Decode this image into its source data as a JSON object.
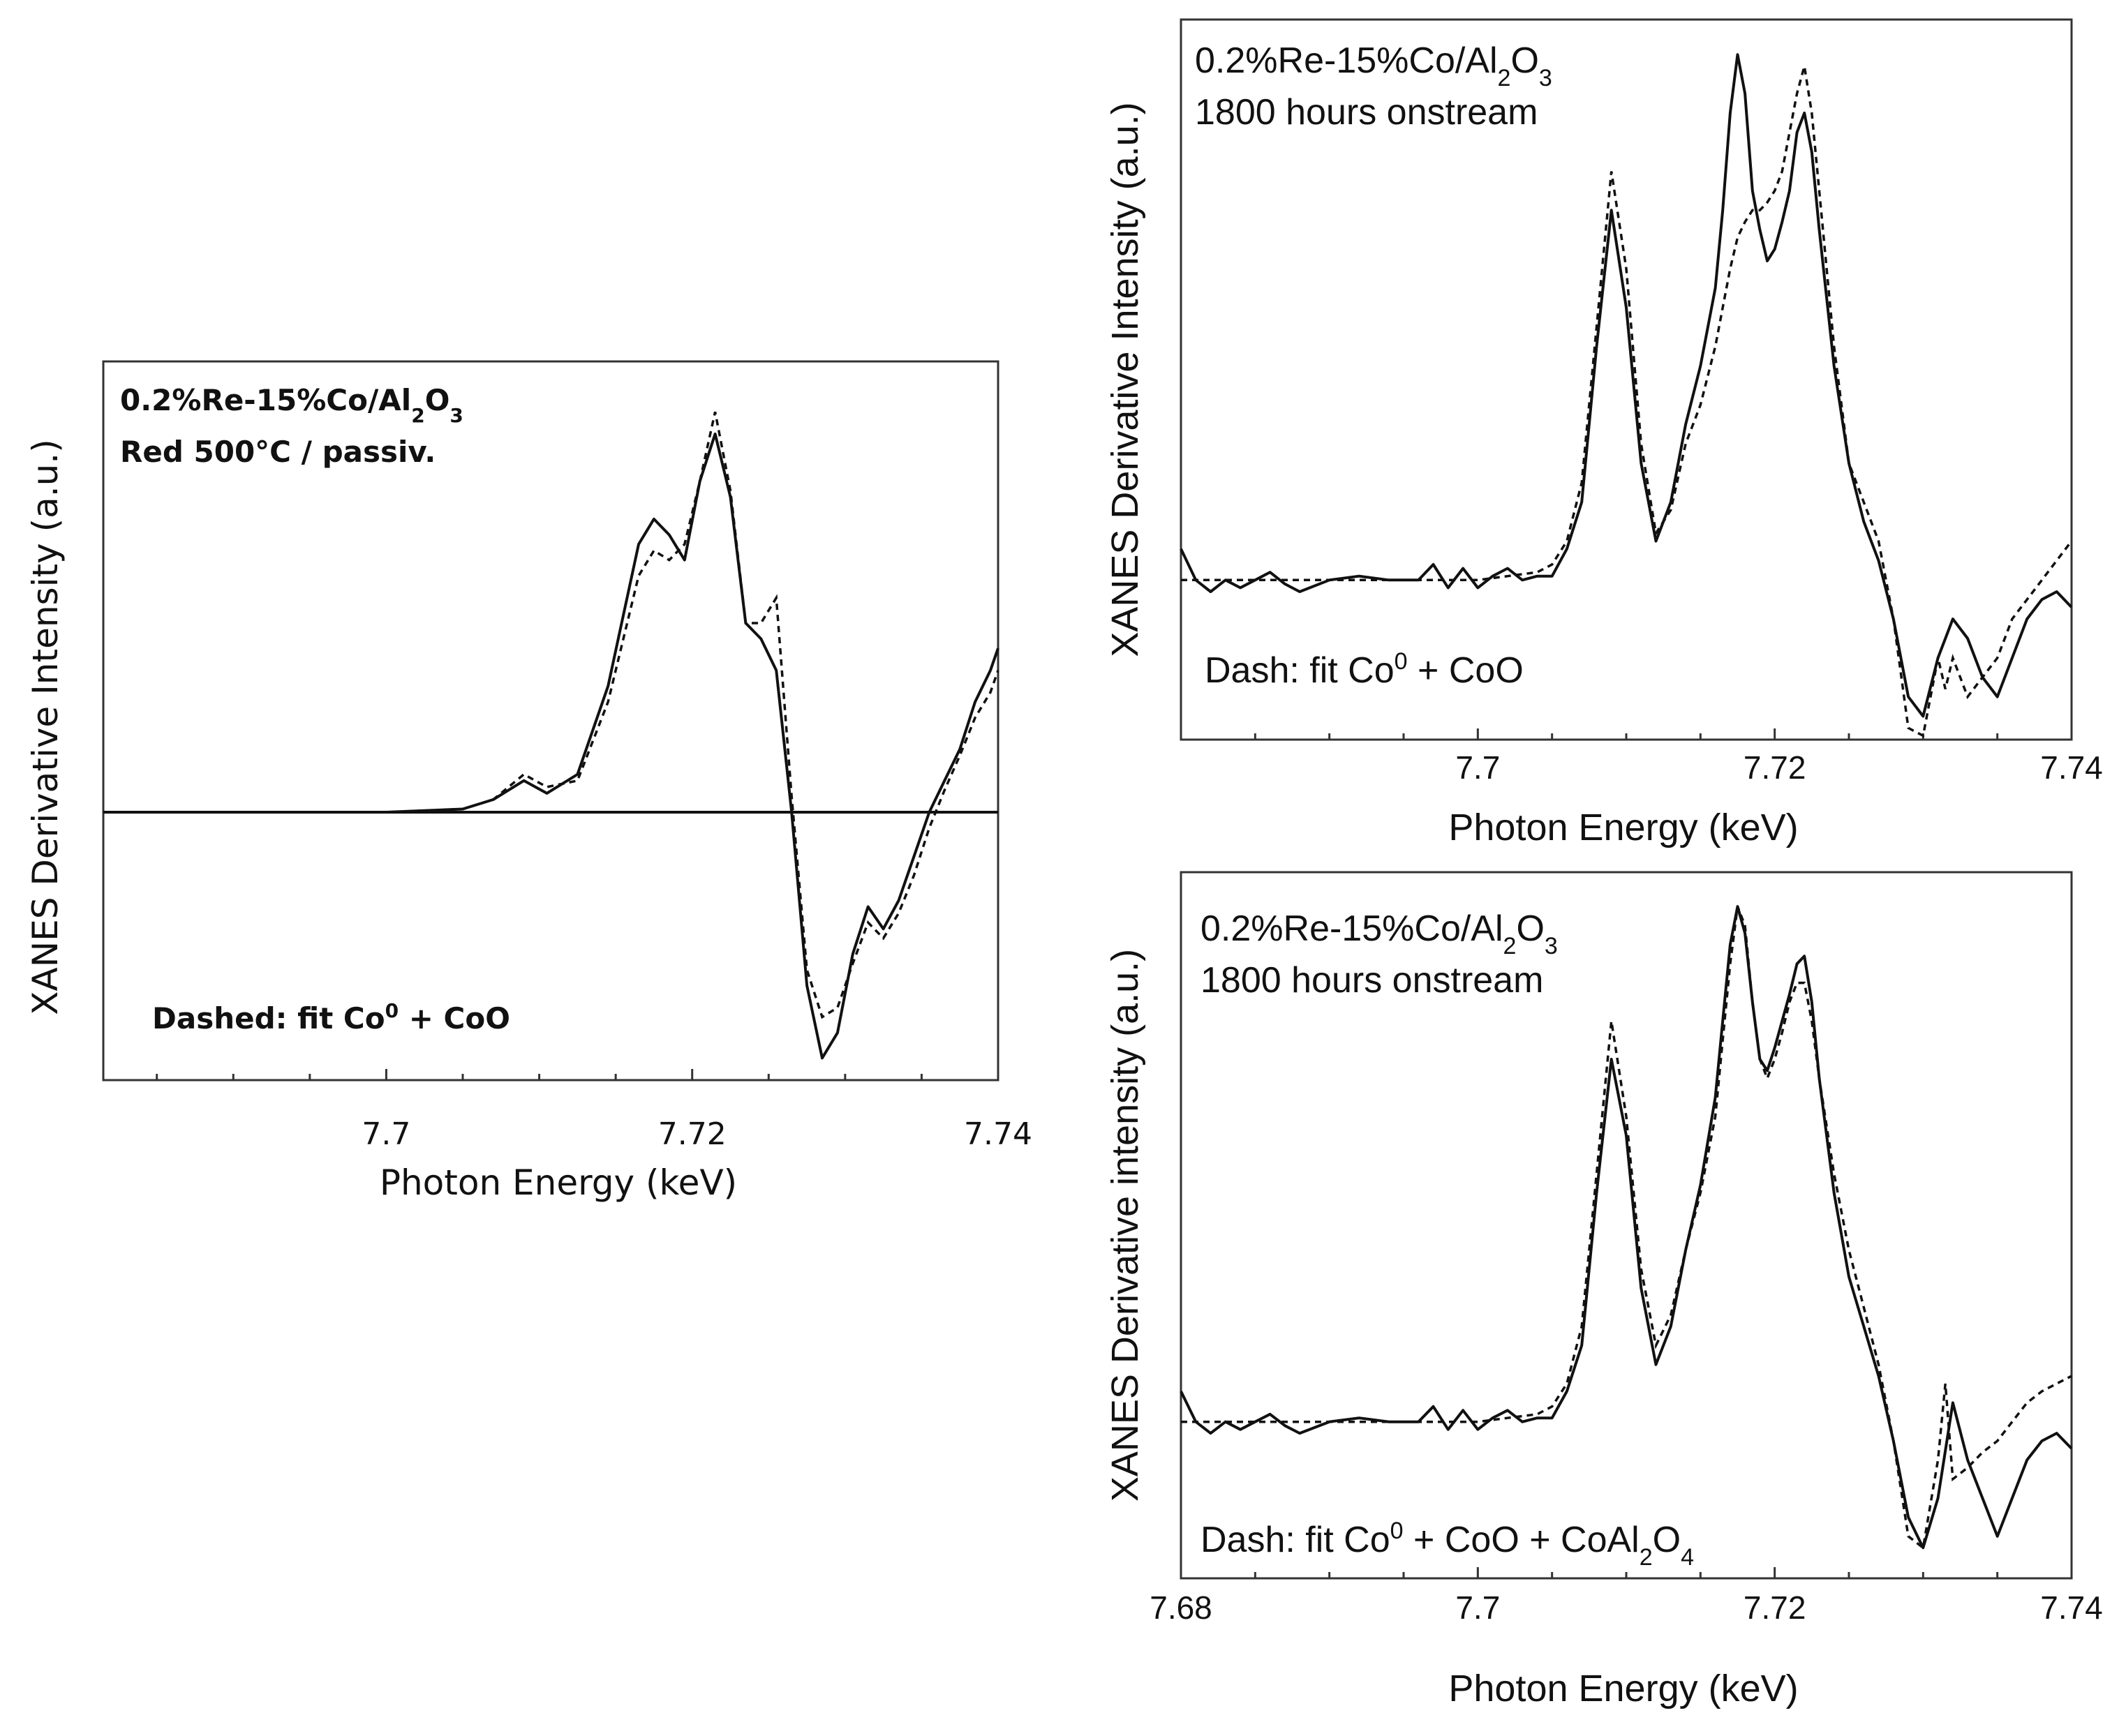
{
  "chart_data": [
    {
      "type": "line",
      "panel": "left",
      "annotation_line1": {
        "prefix": "0.2%Re-15%Co/Al",
        "sub1": "2",
        "mid": "O",
        "sub2": "3"
      },
      "annotation_line2": "Red 500°C / passiv.",
      "legend_note": {
        "prefix": "Dashed:  fit Co",
        "sup": "0",
        "suffix": " + CoO"
      },
      "xlabel": "Photon Energy (keV)",
      "ylabel": "XANES Derivative Intensity (a.u.)",
      "x_ticks": [
        7.7,
        7.72,
        7.74
      ],
      "x_tick_labels": [
        "7.7",
        "7.72",
        "7.74"
      ],
      "xlim": [
        7.6815,
        7.74
      ],
      "ylim": [
        -0.85,
        1.43
      ],
      "zero_line": true,
      "series": [
        {
          "style": "solid",
          "x": [
            7.6815,
            7.7,
            7.705,
            7.707,
            7.709,
            7.7105,
            7.7125,
            7.7145,
            7.7165,
            7.7175,
            7.7185,
            7.7195,
            7.7205,
            7.7215,
            7.7225,
            7.7235,
            7.7245,
            7.7255,
            7.7265,
            7.7275,
            7.7285,
            7.7295,
            7.7305,
            7.7315,
            7.7325,
            7.7335,
            7.7345,
            7.7355,
            7.7365,
            7.7375,
            7.7385,
            7.7395,
            7.74
          ],
          "y": [
            0,
            0,
            0.01,
            0.04,
            0.1,
            0.06,
            0.12,
            0.4,
            0.85,
            0.93,
            0.88,
            0.8,
            1.05,
            1.2,
            1.0,
            0.6,
            0.55,
            0.45,
            0.0,
            -0.55,
            -0.78,
            -0.7,
            -0.45,
            -0.3,
            -0.37,
            -0.28,
            -0.14,
            0.0,
            0.1,
            0.2,
            0.35,
            0.45,
            0.52
          ]
        },
        {
          "style": "dashed",
          "x": [
            7.6815,
            7.7,
            7.705,
            7.707,
            7.709,
            7.7105,
            7.7125,
            7.7145,
            7.7165,
            7.7175,
            7.7185,
            7.7195,
            7.7205,
            7.7215,
            7.7225,
            7.7235,
            7.7245,
            7.7255,
            7.7265,
            7.7275,
            7.7285,
            7.7295,
            7.7305,
            7.7315,
            7.7325,
            7.7335,
            7.7345,
            7.7355,
            7.7365,
            7.7375,
            7.7385,
            7.7395,
            7.74
          ],
          "y": [
            0,
            0,
            0.01,
            0.04,
            0.12,
            0.08,
            0.1,
            0.35,
            0.75,
            0.83,
            0.8,
            0.85,
            1.05,
            1.27,
            1.02,
            0.6,
            0.6,
            0.68,
            0.05,
            -0.5,
            -0.65,
            -0.62,
            -0.48,
            -0.35,
            -0.4,
            -0.32,
            -0.2,
            -0.05,
            0.07,
            0.18,
            0.3,
            0.38,
            0.45
          ]
        }
      ]
    },
    {
      "type": "line",
      "panel": "top-right",
      "annotation_line1": {
        "prefix": "0.2%Re-15%Co/Al",
        "sub1": "2",
        "mid": "O",
        "sub2": "3"
      },
      "annotation_line2": "1800 hours onstream",
      "legend_note": {
        "prefix": "Dash: fit  Co",
        "sup": "0",
        "suffix": " + CoO"
      },
      "xlabel": "Photon Energy (keV)",
      "ylabel": "XANES Derivative Intensity (a.u.)",
      "x_ticks": [
        7.7,
        7.72,
        7.74
      ],
      "x_tick_labels": [
        "7.7",
        "7.72",
        "7.74"
      ],
      "xlim": [
        7.68,
        7.74
      ],
      "ylim": [
        -0.41,
        1.44
      ],
      "series": [
        {
          "style": "solid",
          "x": [
            7.68,
            7.681,
            7.682,
            7.683,
            7.684,
            7.685,
            7.686,
            7.687,
            7.688,
            7.69,
            7.692,
            7.694,
            7.696,
            7.697,
            7.698,
            7.699,
            7.7,
            7.701,
            7.702,
            7.703,
            7.704,
            7.705,
            7.706,
            7.707,
            7.708,
            7.709,
            7.71,
            7.711,
            7.712,
            7.713,
            7.714,
            7.715,
            7.716,
            7.7165,
            7.717,
            7.7175,
            7.718,
            7.7185,
            7.719,
            7.7195,
            7.72,
            7.7205,
            7.721,
            7.7215,
            7.722,
            7.7225,
            7.723,
            7.724,
            7.725,
            7.726,
            7.727,
            7.728,
            7.729,
            7.73,
            7.731,
            7.732,
            7.733,
            7.734,
            7.735,
            7.736,
            7.737,
            7.738,
            7.739,
            7.74
          ],
          "y": [
            0.08,
            0.0,
            -0.03,
            0.0,
            -0.02,
            0.0,
            0.02,
            -0.01,
            -0.03,
            0.0,
            0.01,
            0.0,
            0.0,
            0.04,
            -0.02,
            0.03,
            -0.02,
            0.01,
            0.03,
            0.0,
            0.01,
            0.01,
            0.08,
            0.2,
            0.6,
            0.95,
            0.7,
            0.3,
            0.1,
            0.2,
            0.4,
            0.55,
            0.75,
            0.95,
            1.2,
            1.35,
            1.25,
            1.0,
            0.9,
            0.82,
            0.85,
            0.92,
            1.0,
            1.15,
            1.2,
            1.1,
            0.9,
            0.55,
            0.3,
            0.15,
            0.05,
            -0.1,
            -0.3,
            -0.35,
            -0.2,
            -0.1,
            -0.15,
            -0.25,
            -0.3,
            -0.2,
            -0.1,
            -0.05,
            -0.03,
            -0.07
          ]
        },
        {
          "style": "dashed",
          "x": [
            7.68,
            7.69,
            7.7,
            7.702,
            7.704,
            7.705,
            7.706,
            7.707,
            7.708,
            7.709,
            7.71,
            7.711,
            7.712,
            7.713,
            7.714,
            7.715,
            7.716,
            7.7165,
            7.717,
            7.7175,
            7.718,
            7.7185,
            7.719,
            7.7195,
            7.72,
            7.7205,
            7.721,
            7.7215,
            7.722,
            7.7225,
            7.723,
            7.724,
            7.725,
            7.726,
            7.727,
            7.728,
            7.729,
            7.73,
            7.731,
            7.7315,
            7.732,
            7.733,
            7.734,
            7.735,
            7.736,
            7.737,
            7.738,
            7.739,
            7.74
          ],
          "y": [
            0,
            0,
            0.0,
            0.01,
            0.02,
            0.04,
            0.1,
            0.25,
            0.65,
            1.05,
            0.8,
            0.35,
            0.12,
            0.18,
            0.35,
            0.45,
            0.6,
            0.7,
            0.8,
            0.88,
            0.92,
            0.95,
            0.95,
            0.97,
            1.0,
            1.05,
            1.15,
            1.25,
            1.32,
            1.2,
            1.0,
            0.6,
            0.3,
            0.2,
            0.1,
            -0.1,
            -0.38,
            -0.4,
            -0.2,
            -0.28,
            -0.2,
            -0.3,
            -0.25,
            -0.2,
            -0.1,
            -0.05,
            0.0,
            0.05,
            0.1
          ]
        }
      ]
    },
    {
      "type": "line",
      "panel": "bottom-right",
      "annotation_line1": {
        "prefix": "0.2%Re-15%Co/Al",
        "sub1": "2",
        "mid": "O",
        "sub2": "3"
      },
      "annotation_line2": "1800 hours onstream",
      "legend_note": {
        "prefix": "Dash:  fit Co",
        "sup": "0",
        "suffix": " + CoO + CoAl",
        "sub1": "2",
        "mid": "O",
        "sub2": "4"
      },
      "xlabel": "Photon Energy (keV)",
      "ylabel": "XANES Derivative intensity (a.u.)",
      "x_ticks": [
        7.68,
        7.7,
        7.72,
        7.74
      ],
      "x_tick_labels": [
        "7.68",
        "7.7",
        "7.72",
        "7.74"
      ],
      "xlim": [
        7.68,
        7.74
      ],
      "ylim": [
        -0.41,
        1.44
      ],
      "series": [
        {
          "style": "solid",
          "x": [
            7.68,
            7.681,
            7.682,
            7.683,
            7.684,
            7.685,
            7.686,
            7.687,
            7.688,
            7.69,
            7.692,
            7.694,
            7.696,
            7.697,
            7.698,
            7.699,
            7.7,
            7.701,
            7.702,
            7.703,
            7.704,
            7.705,
            7.706,
            7.707,
            7.708,
            7.709,
            7.71,
            7.711,
            7.712,
            7.713,
            7.714,
            7.715,
            7.716,
            7.7165,
            7.717,
            7.7175,
            7.718,
            7.7185,
            7.719,
            7.7195,
            7.72,
            7.7205,
            7.721,
            7.7215,
            7.722,
            7.7225,
            7.723,
            7.724,
            7.725,
            7.726,
            7.727,
            7.728,
            7.729,
            7.73,
            7.731,
            7.732,
            7.733,
            7.734,
            7.735,
            7.736,
            7.737,
            7.738,
            7.739,
            7.74
          ],
          "y": [
            0.08,
            0.0,
            -0.03,
            0.0,
            -0.02,
            0.0,
            0.02,
            -0.01,
            -0.03,
            0.0,
            0.01,
            0.0,
            0.0,
            0.04,
            -0.02,
            0.03,
            -0.02,
            0.01,
            0.03,
            0.0,
            0.01,
            0.01,
            0.08,
            0.2,
            0.6,
            0.95,
            0.75,
            0.35,
            0.15,
            0.25,
            0.45,
            0.62,
            0.85,
            1.05,
            1.25,
            1.35,
            1.28,
            1.1,
            0.95,
            0.92,
            0.98,
            1.05,
            1.12,
            1.2,
            1.22,
            1.1,
            0.9,
            0.6,
            0.38,
            0.25,
            0.12,
            -0.05,
            -0.25,
            -0.33,
            -0.2,
            0.05,
            -0.1,
            -0.2,
            -0.3,
            -0.2,
            -0.1,
            -0.05,
            -0.03,
            -0.07
          ]
        },
        {
          "style": "dashed",
          "x": [
            7.68,
            7.69,
            7.7,
            7.702,
            7.704,
            7.705,
            7.706,
            7.707,
            7.708,
            7.709,
            7.71,
            7.711,
            7.712,
            7.713,
            7.714,
            7.715,
            7.716,
            7.7165,
            7.717,
            7.7175,
            7.718,
            7.7185,
            7.719,
            7.7195,
            7.72,
            7.7205,
            7.721,
            7.7215,
            7.722,
            7.7225,
            7.723,
            7.724,
            7.725,
            7.726,
            7.727,
            7.728,
            7.729,
            7.73,
            7.731,
            7.7315,
            7.732,
            7.733,
            7.734,
            7.735,
            7.736,
            7.737,
            7.738,
            7.739,
            7.74
          ],
          "y": [
            0,
            0,
            0.0,
            0.01,
            0.02,
            0.04,
            0.1,
            0.25,
            0.65,
            1.05,
            0.8,
            0.4,
            0.2,
            0.28,
            0.45,
            0.6,
            0.8,
            1.0,
            1.2,
            1.35,
            1.3,
            1.1,
            0.95,
            0.9,
            0.95,
            1.02,
            1.1,
            1.15,
            1.15,
            1.05,
            0.9,
            0.65,
            0.45,
            0.3,
            0.15,
            -0.05,
            -0.3,
            -0.33,
            -0.1,
            0.1,
            -0.15,
            -0.12,
            -0.08,
            -0.05,
            0.0,
            0.05,
            0.08,
            0.1,
            0.12
          ]
        }
      ]
    }
  ]
}
